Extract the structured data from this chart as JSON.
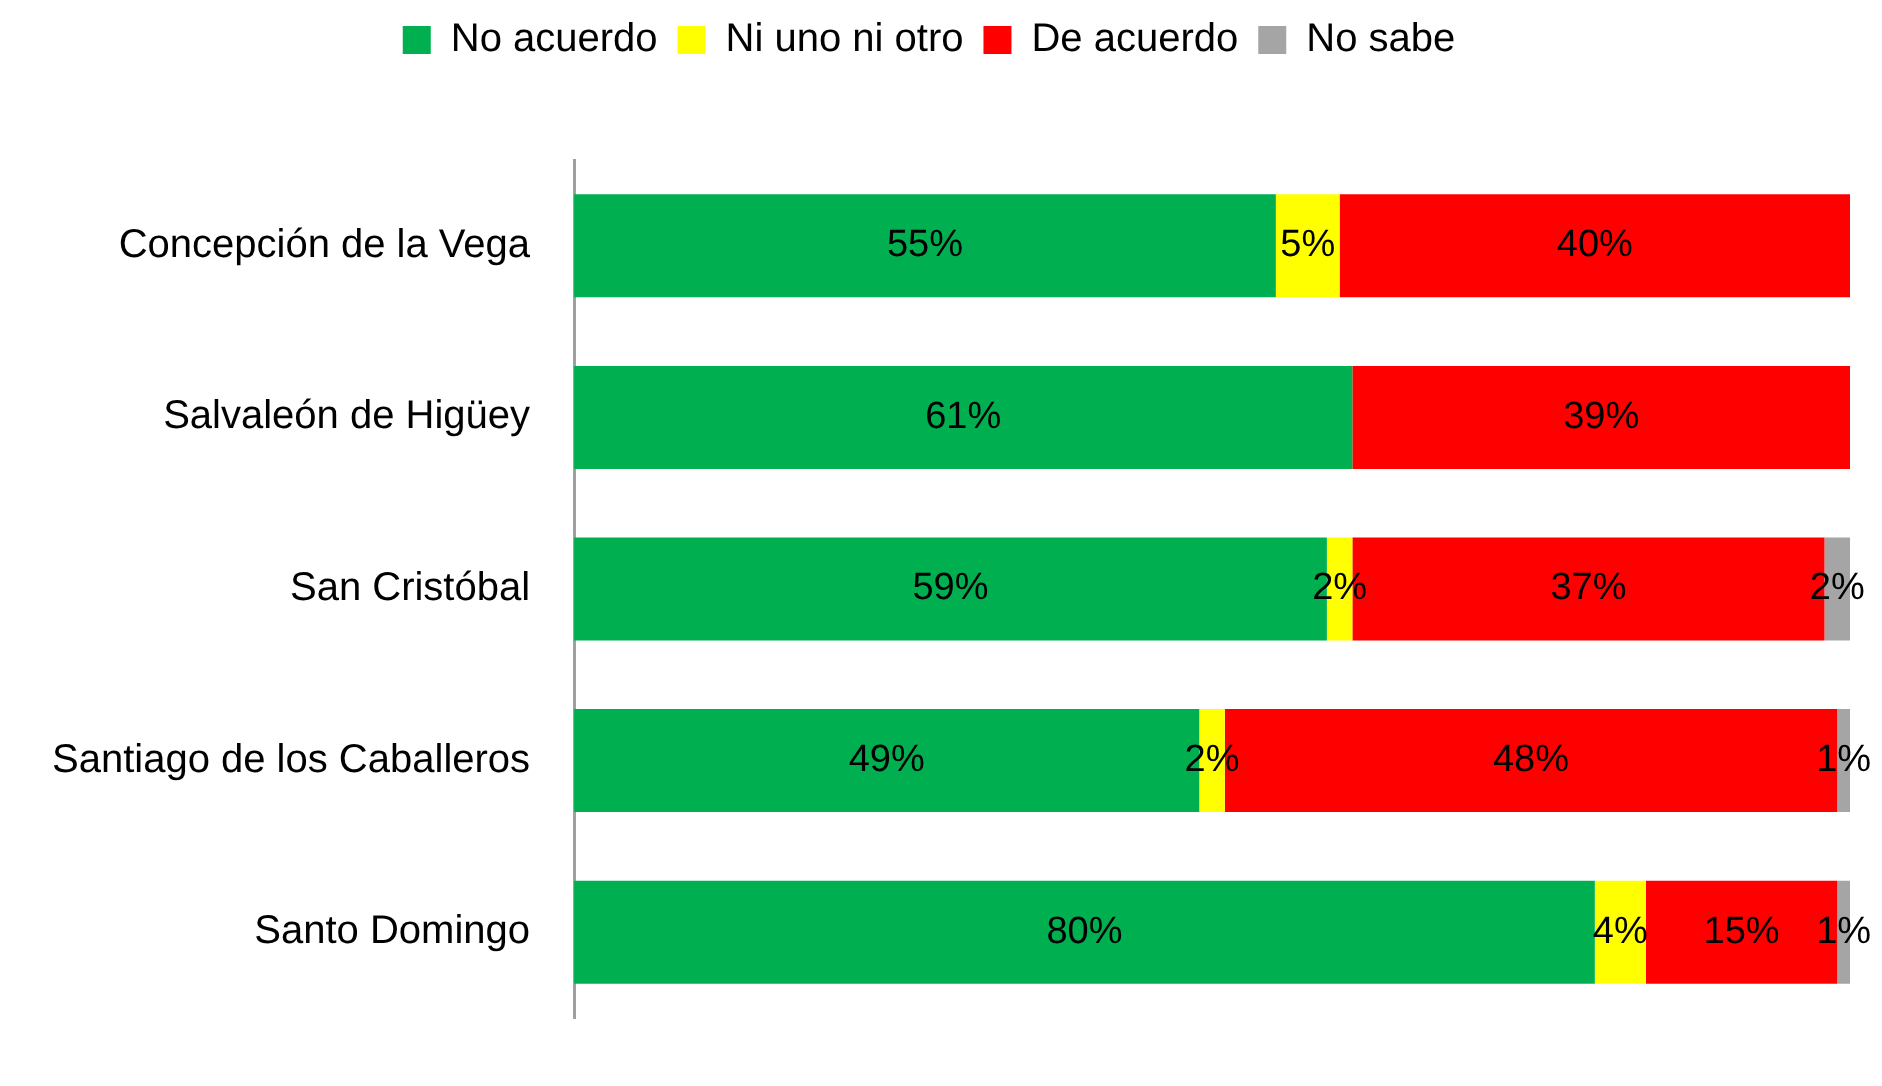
{
  "chart_data": {
    "type": "bar",
    "orientation": "horizontal",
    "stacked": true,
    "categories": [
      "Concepción de la Vega",
      "Salvaleón de Higüey",
      "San Cristóbal",
      "Santiago de los Caballeros",
      "Santo Domingo"
    ],
    "series": [
      {
        "name": "No acuerdo",
        "color": "#00b050",
        "values": [
          55,
          61,
          59,
          49,
          80
        ],
        "value_labels": [
          "55%",
          "61%",
          "59%",
          "49%",
          "80%"
        ]
      },
      {
        "name": "Ni uno ni otro",
        "color": "#ffff00",
        "values": [
          5,
          null,
          2,
          2,
          4
        ],
        "value_labels": [
          "5%",
          null,
          "2%",
          "2%",
          "4%"
        ]
      },
      {
        "name": "De acuerdo",
        "color": "#ff0000",
        "values": [
          40,
          39,
          37,
          48,
          15
        ],
        "value_labels": [
          "40%",
          "39%",
          "37%",
          "48%",
          "15%"
        ]
      },
      {
        "name": "No sabe",
        "color": "#a5a5a5",
        "values": [
          null,
          null,
          2,
          1,
          1
        ],
        "value_labels": [
          null,
          null,
          "2%",
          "1%",
          "1%"
        ]
      }
    ],
    "legend": "top"
  }
}
